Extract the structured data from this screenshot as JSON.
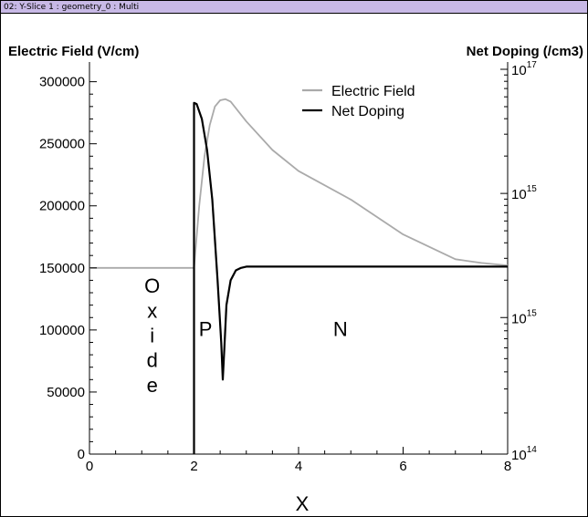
{
  "window": {
    "title": "02: Y-Slice 1 : geometry_0 : Multi"
  },
  "chart_data": {
    "type": "line",
    "xlabel": "X",
    "ylabel_left": "Electric Field (V/cm)",
    "ylabel_right": "Net Doping (/cm3)",
    "xlim": [
      0,
      8
    ],
    "ylim_left": [
      0,
      310000
    ],
    "x_ticks": [
      "0",
      "2",
      "4",
      "6",
      "8"
    ],
    "y_left_ticks": [
      "0",
      "50000",
      "100000",
      "150000",
      "200000",
      "250000",
      "300000"
    ],
    "y_right_ticks": [
      {
        "base": "10",
        "exp": "17",
        "at": 310000
      },
      {
        "base": "10",
        "exp": "15",
        "at": 210000
      },
      {
        "base": "10",
        "exp": "15",
        "at": 110000
      },
      {
        "base": "10",
        "exp": "14",
        "at": 0
      }
    ],
    "grid": false,
    "legend_position": "top-right",
    "series": [
      {
        "name": "Electric Field",
        "color": "#aaaaaa",
        "axis": "left",
        "x": [
          0,
          1.8,
          2.0,
          2.1,
          2.2,
          2.3,
          2.4,
          2.5,
          2.6,
          2.7,
          3.0,
          3.5,
          4.0,
          5.0,
          6.0,
          7.0,
          7.5,
          8.0
        ],
        "y": [
          150000,
          150000,
          150000,
          200000,
          240000,
          265000,
          280000,
          285000,
          286000,
          284000,
          268000,
          245000,
          228000,
          205000,
          177000,
          157000,
          154000,
          152000
        ]
      },
      {
        "name": "Net Doping",
        "color": "#000000",
        "axis": "right",
        "x": [
          2.0,
          2.0,
          2.05,
          2.15,
          2.25,
          2.35,
          2.45,
          2.52,
          2.55,
          2.58,
          2.62,
          2.7,
          2.8,
          2.9,
          3.0,
          3.2,
          4.0,
          6.0,
          8.0
        ],
        "y": [
          0,
          283000,
          282000,
          270000,
          245000,
          205000,
          140000,
          90000,
          60000,
          85000,
          120000,
          140000,
          148000,
          150000,
          151000,
          151000,
          151000,
          151000,
          151000
        ]
      }
    ],
    "annotations": [
      {
        "text": "O",
        "x": 1.2,
        "y": 130000
      },
      {
        "text": "x",
        "x": 1.2,
        "y": 110000
      },
      {
        "text": "i",
        "x": 1.2,
        "y": 90000
      },
      {
        "text": "d",
        "x": 1.2,
        "y": 70000
      },
      {
        "text": "e",
        "x": 1.2,
        "y": 50000
      },
      {
        "text": "P",
        "x": 2.22,
        "y": 95000
      },
      {
        "text": "N",
        "x": 4.8,
        "y": 95000
      }
    ]
  }
}
